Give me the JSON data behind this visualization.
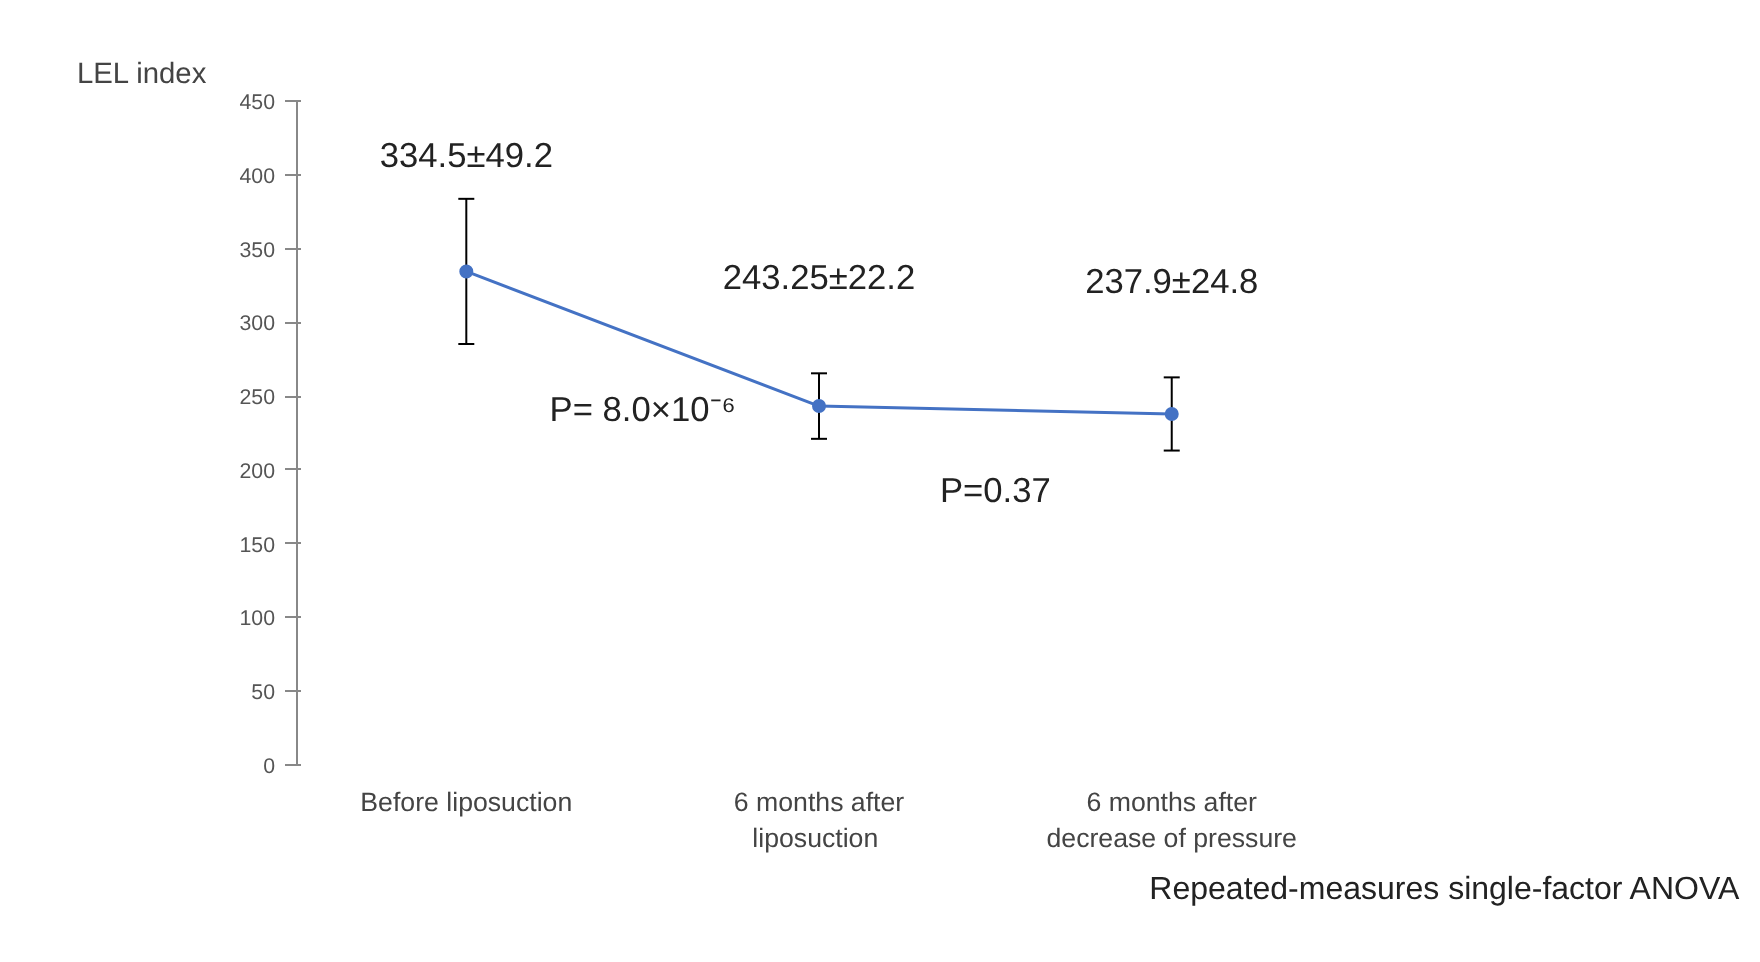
{
  "chart_data": {
    "type": "line",
    "ylabel": "LEL index",
    "categories": [
      "Before liposuction",
      "6 months after\n liposuction",
      "6 months after\ndecrease of pressure"
    ],
    "series": [
      {
        "color": "#4472c4",
        "values": [
          334.5,
          243.25,
          237.9
        ],
        "errors": [
          49.2,
          22.2,
          24.8
        ],
        "value_labels": [
          "334.5±49.2",
          "243.25±22.2",
          "237.9±24.8"
        ]
      }
    ],
    "ylim": [
      0,
      450
    ],
    "yticks": [
      0,
      50,
      100,
      150,
      200,
      250,
      300,
      350,
      400,
      450
    ],
    "grid": false,
    "marker": "circle",
    "line_style": "solid",
    "annotations": [
      "P= 8.0×10⁻⁶",
      "P=0.37",
      "Repeated-measures single-factor ANOVA"
    ]
  }
}
